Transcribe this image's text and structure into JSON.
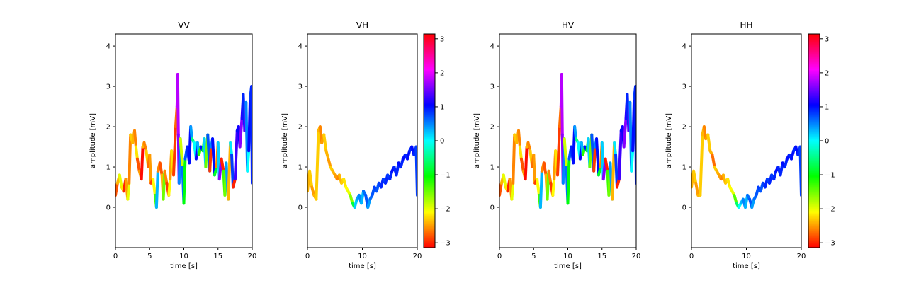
{
  "chart_data": [
    {
      "type": "line",
      "title": "VV",
      "xlabel": "time [s]",
      "ylabel": "amplitude [mV]",
      "xlim": [
        0,
        20
      ],
      "ylim": [
        -1,
        4.3
      ],
      "xticks": [
        0,
        5,
        10,
        15,
        20
      ],
      "yticks": [
        0,
        1,
        2,
        3,
        4
      ],
      "colorbar": false,
      "x": [
        0.0,
        0.3,
        0.6,
        0.9,
        1.2,
        1.5,
        1.8,
        2.0,
        2.2,
        2.5,
        2.8,
        3.0,
        3.2,
        3.5,
        3.8,
        4.0,
        4.2,
        4.5,
        4.8,
        5.0,
        5.2,
        5.5,
        5.8,
        6.0,
        6.2,
        6.5,
        6.8,
        7.0,
        7.2,
        7.5,
        7.8,
        8.0,
        8.2,
        8.5,
        8.8,
        9.0,
        9.1,
        9.2,
        9.3,
        9.5,
        9.8,
        10.0,
        10.2,
        10.5,
        10.8,
        11.0,
        11.2,
        11.5,
        11.8,
        12.0,
        12.2,
        12.5,
        12.8,
        13.0,
        13.2,
        13.5,
        13.8,
        14.0,
        14.2,
        14.5,
        14.8,
        15.0,
        15.2,
        15.5,
        15.8,
        16.0,
        16.2,
        16.5,
        16.8,
        17.0,
        17.2,
        17.5,
        17.8,
        18.0,
        18.2,
        18.5,
        18.7,
        18.9,
        19.1,
        19.3,
        19.5,
        19.7,
        19.9,
        20.0
      ],
      "y": [
        0.3,
        0.6,
        0.8,
        0.5,
        0.4,
        0.7,
        0.2,
        0.6,
        1.8,
        1.6,
        1.9,
        1.5,
        1.2,
        0.9,
        0.7,
        1.5,
        1.6,
        1.4,
        1.0,
        1.3,
        0.6,
        0.7,
        0.3,
        0.0,
        0.9,
        1.1,
        0.8,
        0.2,
        0.9,
        0.6,
        0.3,
        0.7,
        1.4,
        0.8,
        2.0,
        2.5,
        3.3,
        1.8,
        0.6,
        1.7,
        1.0,
        0.1,
        1.2,
        1.5,
        1.1,
        2.0,
        1.7,
        1.6,
        1.2,
        1.6,
        1.3,
        1.5,
        1.4,
        1.7,
        1.0,
        1.8,
        0.9,
        1.5,
        1.7,
        0.8,
        1.0,
        1.6,
        0.7,
        1.2,
        0.9,
        0.3,
        1.1,
        0.2,
        1.6,
        1.3,
        0.5,
        0.7,
        1.9,
        2.0,
        1.5,
        2.2,
        2.8,
        1.9,
        2.6,
        0.9,
        1.4,
        2.7,
        3.0,
        0.6
      ],
      "phase": [
        -2.8,
        -2.4,
        -2.0,
        -2.2,
        -3.0,
        -2.5,
        -2.0,
        -2.6,
        -2.3,
        -2.4,
        -2.6,
        -2.2,
        -2.8,
        -2.5,
        -3.1,
        -2.4,
        -2.6,
        -2.3,
        -2.7,
        -2.5,
        -2.9,
        -2.1,
        -1.3,
        0.3,
        -2.6,
        -2.8,
        -2.4,
        -1.5,
        -2.6,
        -2.9,
        -2.1,
        -2.5,
        -2.2,
        -2.9,
        -2.7,
        1.9,
        1.8,
        1.6,
        0.5,
        -1.9,
        0.6,
        -1.0,
        0.7,
        0.9,
        1.0,
        0.4,
        -0.5,
        0.0,
        1.1,
        0.3,
        -1.2,
        1.0,
        -0.8,
        0.2,
        -1.5,
        0.7,
        -2.9,
        0.5,
        1.0,
        -0.9,
        -2.6,
        0.2,
        1.6,
        -3.0,
        -1.3,
        -1.5,
        0.4,
        -2.4,
        0.1,
        0.8,
        -3.0,
        1.3,
        1.0,
        1.1,
        1.6,
        1.2,
        0.9,
        1.4,
        0.5,
        0.0,
        1.0,
        0.8,
        0.9,
        1.0
      ]
    },
    {
      "type": "line",
      "title": "VH",
      "xlabel": "time [s]",
      "ylabel": "amplitude [mV]",
      "xlim": [
        0,
        20
      ],
      "ylim": [
        -1,
        4.3
      ],
      "xticks": [
        0,
        10,
        20
      ],
      "yticks": [
        0,
        1,
        2,
        3,
        4
      ],
      "colorbar": true,
      "colorbar_ticks": [
        -3,
        -2,
        -1,
        0,
        1,
        2,
        3
      ],
      "x": [
        0.0,
        0.4,
        0.8,
        1.2,
        1.6,
        2.0,
        2.3,
        2.6,
        3.0,
        3.4,
        3.8,
        4.2,
        4.6,
        5.0,
        5.4,
        5.8,
        6.2,
        6.6,
        7.0,
        7.4,
        7.8,
        8.2,
        8.6,
        9.0,
        9.4,
        9.8,
        10.2,
        10.6,
        11.0,
        11.4,
        11.8,
        12.2,
        12.6,
        13.0,
        13.4,
        13.8,
        14.2,
        14.6,
        15.0,
        15.4,
        15.8,
        16.2,
        16.6,
        17.0,
        17.4,
        17.8,
        18.2,
        18.6,
        19.0,
        19.4,
        19.8,
        20.0
      ],
      "y": [
        0.4,
        0.9,
        0.5,
        0.3,
        0.2,
        1.9,
        2.0,
        1.6,
        1.8,
        1.4,
        1.2,
        1.0,
        0.9,
        0.8,
        0.7,
        0.8,
        0.6,
        0.7,
        0.5,
        0.4,
        0.3,
        0.1,
        0.0,
        0.2,
        0.3,
        0.1,
        0.4,
        0.3,
        0.0,
        0.2,
        0.3,
        0.5,
        0.4,
        0.6,
        0.5,
        0.7,
        0.6,
        0.8,
        0.7,
        0.9,
        1.0,
        0.8,
        1.1,
        1.0,
        1.2,
        1.3,
        1.2,
        1.4,
        1.5,
        1.3,
        1.5,
        0.3
      ],
      "phase": [
        -2.4,
        -2.3,
        -2.5,
        -2.4,
        -2.3,
        -2.4,
        -2.6,
        -2.5,
        -2.3,
        -2.4,
        -2.5,
        -2.3,
        -2.4,
        -2.5,
        -2.6,
        -2.4,
        -2.3,
        -2.2,
        -2.1,
        -2.0,
        -1.6,
        -0.8,
        0.2,
        0.4,
        0.5,
        0.3,
        0.6,
        0.7,
        0.4,
        0.6,
        0.7,
        0.8,
        0.7,
        0.8,
        0.9,
        0.8,
        0.9,
        0.8,
        0.9,
        1.0,
        0.9,
        0.9,
        1.0,
        0.9,
        1.0,
        0.9,
        1.0,
        0.9,
        1.0,
        0.9,
        0.8,
        0.6
      ]
    },
    {
      "type": "line",
      "title": "HV",
      "xlabel": "time [s]",
      "ylabel": "amplitude [mV]",
      "xlim": [
        0,
        20
      ],
      "ylim": [
        -1,
        4.3
      ],
      "xticks": [
        0,
        5,
        10,
        15,
        20
      ],
      "yticks": [
        0,
        1,
        2,
        3,
        4
      ],
      "colorbar": false,
      "x": [
        0.0,
        0.3,
        0.6,
        0.9,
        1.2,
        1.5,
        1.8,
        2.0,
        2.2,
        2.5,
        2.8,
        3.0,
        3.2,
        3.5,
        3.8,
        4.0,
        4.2,
        4.5,
        4.8,
        5.0,
        5.2,
        5.5,
        5.8,
        6.0,
        6.2,
        6.5,
        6.8,
        7.0,
        7.2,
        7.5,
        7.8,
        8.0,
        8.2,
        8.5,
        8.8,
        9.0,
        9.1,
        9.2,
        9.3,
        9.5,
        9.8,
        10.0,
        10.2,
        10.5,
        10.8,
        11.0,
        11.2,
        11.5,
        11.8,
        12.0,
        12.2,
        12.5,
        12.8,
        13.0,
        13.2,
        13.5,
        13.8,
        14.0,
        14.2,
        14.5,
        14.8,
        15.0,
        15.2,
        15.5,
        15.8,
        16.0,
        16.2,
        16.5,
        16.8,
        17.0,
        17.2,
        17.5,
        17.8,
        18.0,
        18.2,
        18.5,
        18.7,
        18.9,
        19.1,
        19.3,
        19.5,
        19.7,
        19.9,
        20.0
      ],
      "y": [
        0.3,
        0.6,
        0.8,
        0.5,
        0.4,
        0.7,
        0.2,
        0.6,
        1.8,
        1.6,
        1.9,
        1.5,
        1.2,
        0.9,
        0.7,
        1.5,
        1.6,
        1.4,
        1.0,
        1.3,
        0.6,
        0.7,
        0.3,
        0.0,
        0.9,
        1.1,
        0.8,
        0.2,
        0.9,
        0.6,
        0.3,
        0.7,
        1.4,
        0.8,
        2.0,
        2.5,
        3.3,
        1.8,
        0.6,
        1.7,
        1.0,
        0.1,
        1.2,
        1.5,
        1.1,
        2.0,
        1.7,
        1.6,
        1.2,
        1.6,
        1.3,
        1.5,
        1.4,
        1.7,
        1.0,
        1.8,
        0.9,
        1.5,
        1.7,
        0.8,
        1.0,
        1.6,
        0.7,
        1.2,
        0.9,
        0.3,
        1.1,
        0.2,
        1.6,
        1.3,
        0.5,
        0.7,
        1.9,
        2.0,
        1.5,
        2.2,
        2.8,
        1.9,
        2.6,
        0.9,
        1.4,
        2.7,
        3.0,
        0.6
      ],
      "phase": [
        -2.8,
        -2.4,
        -2.0,
        -2.2,
        -3.0,
        -2.5,
        -2.0,
        -2.6,
        -2.3,
        -2.4,
        -2.6,
        -2.2,
        -2.8,
        -2.5,
        -3.1,
        -2.4,
        -2.6,
        -2.3,
        -2.7,
        -2.5,
        -2.9,
        -2.1,
        -1.3,
        0.3,
        -2.6,
        -2.8,
        -2.4,
        -1.5,
        -2.6,
        -2.9,
        -2.1,
        -2.5,
        -2.2,
        -2.9,
        -2.7,
        1.9,
        1.8,
        1.6,
        0.5,
        -1.9,
        0.6,
        -1.0,
        0.7,
        0.9,
        1.0,
        0.4,
        -0.5,
        0.0,
        1.1,
        0.3,
        -1.2,
        1.0,
        -0.8,
        0.2,
        -1.5,
        0.7,
        -2.9,
        0.5,
        1.0,
        -0.9,
        -2.6,
        0.2,
        1.6,
        -3.0,
        -1.3,
        -1.5,
        0.4,
        -2.4,
        0.1,
        0.8,
        -3.0,
        1.3,
        1.0,
        1.1,
        1.6,
        1.2,
        0.9,
        1.4,
        0.5,
        0.0,
        1.0,
        0.8,
        0.9,
        1.0
      ]
    },
    {
      "type": "line",
      "title": "HH",
      "xlabel": "time [s]",
      "ylabel": "amplitude [mV]",
      "xlim": [
        0,
        20
      ],
      "ylim": [
        -1,
        4.3
      ],
      "xticks": [
        0,
        10,
        20
      ],
      "yticks": [
        0,
        1,
        2,
        3,
        4
      ],
      "colorbar": true,
      "colorbar_ticks": [
        -3,
        -2,
        -1,
        0,
        1,
        2,
        3
      ],
      "x": [
        0.0,
        0.4,
        0.8,
        1.2,
        1.6,
        2.0,
        2.3,
        2.6,
        3.0,
        3.4,
        3.8,
        4.2,
        4.6,
        5.0,
        5.4,
        5.8,
        6.2,
        6.6,
        7.0,
        7.4,
        7.8,
        8.2,
        8.6,
        9.0,
        9.4,
        9.8,
        10.2,
        10.6,
        11.0,
        11.4,
        11.8,
        12.2,
        12.6,
        13.0,
        13.4,
        13.8,
        14.2,
        14.6,
        15.0,
        15.4,
        15.8,
        16.2,
        16.6,
        17.0,
        17.4,
        17.8,
        18.2,
        18.6,
        19.0,
        19.4,
        19.8,
        20.0
      ],
      "y": [
        0.5,
        0.9,
        0.6,
        0.3,
        0.3,
        1.8,
        2.0,
        1.7,
        1.8,
        1.4,
        1.3,
        1.0,
        0.9,
        0.8,
        0.7,
        0.8,
        0.6,
        0.7,
        0.5,
        0.4,
        0.3,
        0.1,
        0.0,
        0.1,
        0.2,
        0.0,
        0.3,
        0.2,
        0.0,
        0.2,
        0.3,
        0.5,
        0.4,
        0.6,
        0.5,
        0.7,
        0.6,
        0.8,
        0.7,
        0.9,
        1.0,
        0.8,
        1.1,
        1.0,
        1.2,
        1.3,
        1.2,
        1.4,
        1.5,
        1.3,
        1.5,
        0.3
      ],
      "phase": [
        -2.4,
        -2.3,
        -2.5,
        -2.4,
        -2.3,
        -2.4,
        -2.6,
        -2.5,
        -2.3,
        -2.4,
        -2.7,
        -2.3,
        -2.4,
        -2.5,
        -2.6,
        -2.4,
        -2.3,
        -2.2,
        -2.1,
        -2.0,
        -1.4,
        -0.6,
        0.0,
        0.3,
        0.5,
        0.3,
        0.6,
        0.7,
        0.4,
        0.6,
        0.7,
        0.8,
        0.7,
        0.8,
        0.9,
        0.8,
        0.9,
        0.8,
        0.9,
        1.0,
        0.9,
        0.9,
        1.0,
        0.9,
        1.0,
        0.9,
        1.0,
        0.9,
        1.0,
        0.9,
        0.8,
        0.6
      ]
    }
  ]
}
